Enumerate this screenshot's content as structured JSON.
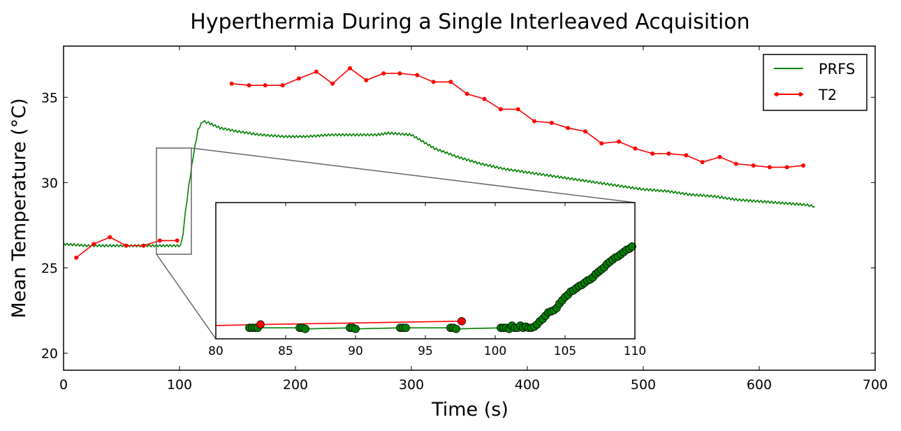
{
  "chart_data": {
    "type": "line",
    "title": "Hyperthermia During a Single Interleaved Acquisition",
    "xlabel": "Time (s)",
    "ylabel": "Mean Temperature (°C)",
    "xlim": [
      0,
      700
    ],
    "ylim": [
      19,
      38
    ],
    "x_ticks": [
      0,
      100,
      200,
      300,
      400,
      500,
      600,
      700
    ],
    "y_ticks": [
      20,
      25,
      30,
      35
    ],
    "legend_position": "top-right",
    "series": [
      {
        "name": "PRFS",
        "color": "#008000",
        "marker": "none",
        "x": [
          0,
          20,
          40,
          60,
          80,
          95,
          101,
          103,
          105,
          108,
          112,
          116,
          120,
          125,
          135,
          150,
          170,
          190,
          210,
          230,
          250,
          270,
          280,
          300,
          310,
          320,
          340,
          360,
          380,
          400,
          420,
          440,
          460,
          480,
          500,
          520,
          540,
          560,
          580,
          600,
          620,
          640,
          648
        ],
        "values": [
          26.4,
          26.3,
          26.3,
          26.3,
          26.3,
          26.3,
          26.3,
          27.0,
          28.2,
          29.8,
          31.6,
          33.1,
          33.6,
          33.5,
          33.2,
          33.0,
          32.8,
          32.7,
          32.7,
          32.8,
          32.8,
          32.8,
          32.9,
          32.8,
          32.4,
          32.0,
          31.5,
          31.1,
          30.8,
          30.6,
          30.4,
          30.2,
          30.0,
          29.8,
          29.6,
          29.5,
          29.3,
          29.2,
          29.0,
          28.9,
          28.8,
          28.7,
          28.6
        ]
      },
      {
        "name": "T2",
        "color": "#ff0000",
        "marker": "circle",
        "x": [
          11,
          26,
          40,
          54,
          69,
          83,
          98,
          145,
          160,
          174,
          189,
          203,
          218,
          232,
          247,
          261,
          276,
          290,
          305,
          319,
          334,
          348,
          363,
          377,
          392,
          406,
          421,
          435,
          450,
          464,
          479,
          493,
          508,
          522,
          537,
          551,
          566,
          580,
          595,
          609,
          624,
          638
        ],
        "values": [
          25.6,
          26.4,
          26.8,
          26.3,
          26.3,
          26.6,
          26.6,
          35.8,
          35.7,
          35.7,
          35.7,
          36.1,
          36.5,
          35.8,
          36.7,
          36.0,
          36.4,
          36.4,
          36.3,
          35.9,
          35.9,
          35.2,
          34.9,
          34.3,
          34.3,
          33.6,
          33.5,
          33.2,
          33.0,
          32.3,
          32.4,
          32.0,
          31.7,
          31.7,
          31.6,
          31.2,
          31.5,
          31.1,
          31.0,
          30.9,
          30.9,
          31.0
        ]
      }
    ],
    "inset": {
      "xlim": [
        80,
        110
      ],
      "ylim": [
        25.8,
        32.0
      ],
      "x_ticks": [
        80,
        85,
        90,
        95,
        100,
        105,
        110
      ],
      "series": [
        {
          "name": "PRFS",
          "color": "#008000",
          "marker": "circle",
          "x": [
            82.4,
            82.6,
            82.8,
            83.0,
            86.0,
            86.2,
            86.4,
            89.6,
            89.8,
            90.0,
            93.2,
            93.4,
            93.6,
            96.8,
            97.0,
            97.2,
            100.4,
            100.6,
            100.8,
            101.0,
            101.2,
            101.4,
            101.6,
            101.8,
            102.0,
            102.2,
            102.4,
            102.6,
            102.8,
            103.0,
            103.2,
            103.4,
            103.6,
            103.8,
            104.0,
            104.2,
            104.4,
            104.6,
            104.8,
            105.0,
            105.2,
            105.4,
            105.6,
            105.8,
            106.0,
            106.2,
            106.4,
            106.6,
            106.8,
            107.0,
            107.2,
            107.4,
            107.6,
            107.8,
            108.0,
            108.2,
            108.4,
            108.6,
            108.8,
            109.0,
            109.2,
            109.4,
            109.6,
            109.8
          ],
          "values": [
            26.3,
            26.3,
            26.3,
            26.3,
            26.3,
            26.3,
            26.25,
            26.3,
            26.3,
            26.25,
            26.3,
            26.3,
            26.3,
            26.3,
            26.3,
            26.25,
            26.3,
            26.3,
            26.3,
            26.25,
            26.4,
            26.3,
            26.3,
            26.4,
            26.3,
            26.35,
            26.3,
            26.3,
            26.35,
            26.45,
            26.6,
            26.7,
            26.85,
            27.0,
            27.05,
            27.1,
            27.2,
            27.4,
            27.55,
            27.7,
            27.8,
            27.95,
            28.0,
            28.1,
            28.2,
            28.25,
            28.35,
            28.45,
            28.5,
            28.6,
            28.75,
            28.85,
            28.95,
            29.05,
            29.2,
            29.3,
            29.4,
            29.5,
            29.55,
            29.65,
            29.75,
            29.85,
            29.9,
            30.0
          ]
        },
        {
          "name": "T2",
          "color": "#ff0000",
          "marker": "circle",
          "x": [
            80,
            83.2,
            97.6
          ],
          "values": [
            26.4,
            26.45,
            26.6
          ]
        }
      ]
    }
  }
}
